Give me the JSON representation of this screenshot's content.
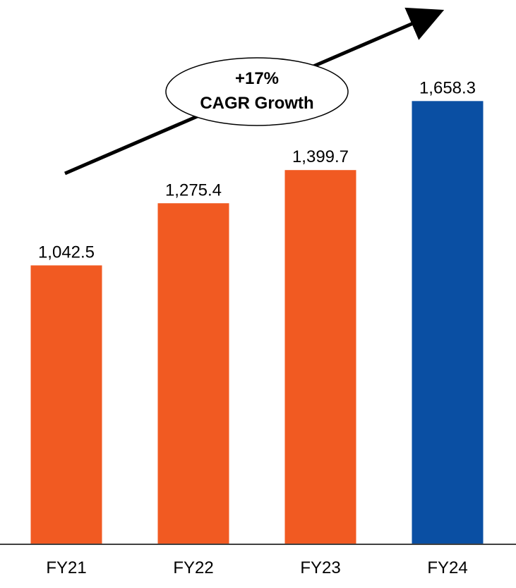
{
  "chart_data": {
    "type": "bar",
    "categories": [
      "FY21",
      "FY22",
      "FY23",
      "FY24"
    ],
    "values": [
      1042.5,
      1275.4,
      1399.7,
      1658.3
    ],
    "value_labels": [
      "1,042.5",
      "1,275.4",
      "1,399.7",
      "1,658.3"
    ],
    "bar_colors": [
      "#F15A22",
      "#F15A22",
      "#F15A22",
      "#0A4FA3"
    ],
    "title": "",
    "xlabel": "",
    "ylabel": "",
    "ylim": [
      0,
      1700
    ],
    "grid": false,
    "legend": "none",
    "annotation": {
      "line1": "+17%",
      "line2": "CAGR Growth",
      "shape": "ellipse",
      "arrow": "up-right trend arrow"
    }
  },
  "colors": {
    "axis": "#000000",
    "background": "#FFFFFF"
  }
}
